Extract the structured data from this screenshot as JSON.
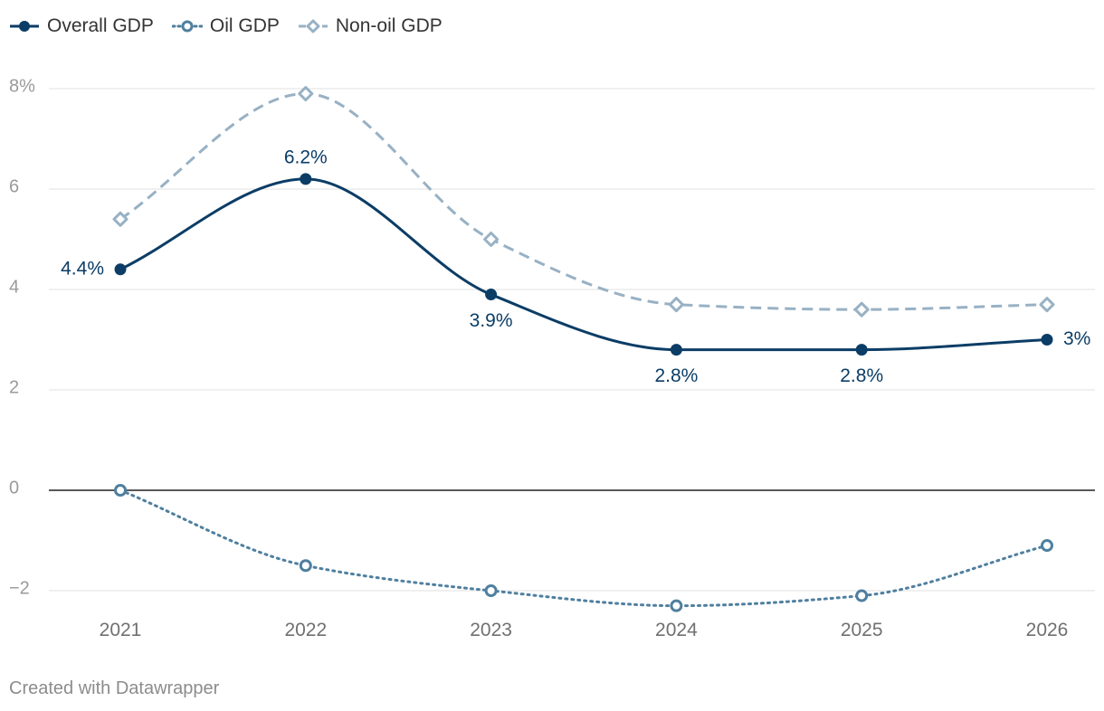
{
  "chart_data": {
    "type": "line",
    "title": "",
    "xlabel": "",
    "ylabel": "",
    "x": [
      "2021",
      "2022",
      "2023",
      "2024",
      "2025",
      "2026"
    ],
    "ylim": [
      -2.3,
      8
    ],
    "yticks": [
      {
        "value": 8,
        "label": "8%"
      },
      {
        "value": 6,
        "label": "6"
      },
      {
        "value": 4,
        "label": "4"
      },
      {
        "value": 2,
        "label": "2"
      },
      {
        "value": 0,
        "label": "0"
      },
      {
        "value": -2,
        "label": "−2"
      }
    ],
    "series": [
      {
        "name": "Overall GDP",
        "values": [
          4.4,
          6.2,
          3.9,
          2.8,
          2.8,
          3.0
        ],
        "labels": [
          "4.4%",
          "6.2%",
          "3.9%",
          "2.8%",
          "2.8%",
          "3%"
        ],
        "color": "#0b3d66",
        "style": "solid",
        "marker": "filled-circle"
      },
      {
        "name": "Oil GDP",
        "values": [
          0.0,
          -1.5,
          -2.0,
          -2.3,
          -2.1,
          -1.1
        ],
        "color": "#4f7f9f",
        "style": "dotted",
        "marker": "hollow-circle"
      },
      {
        "name": "Non-oil GDP",
        "values": [
          5.4,
          7.9,
          5.0,
          3.7,
          3.6,
          3.7
        ],
        "color": "#98b1c4",
        "style": "dashed",
        "marker": "hollow-diamond"
      }
    ],
    "grid": true,
    "legend_position": "top-left"
  },
  "footer": {
    "credit": "Created with Datawrapper"
  }
}
